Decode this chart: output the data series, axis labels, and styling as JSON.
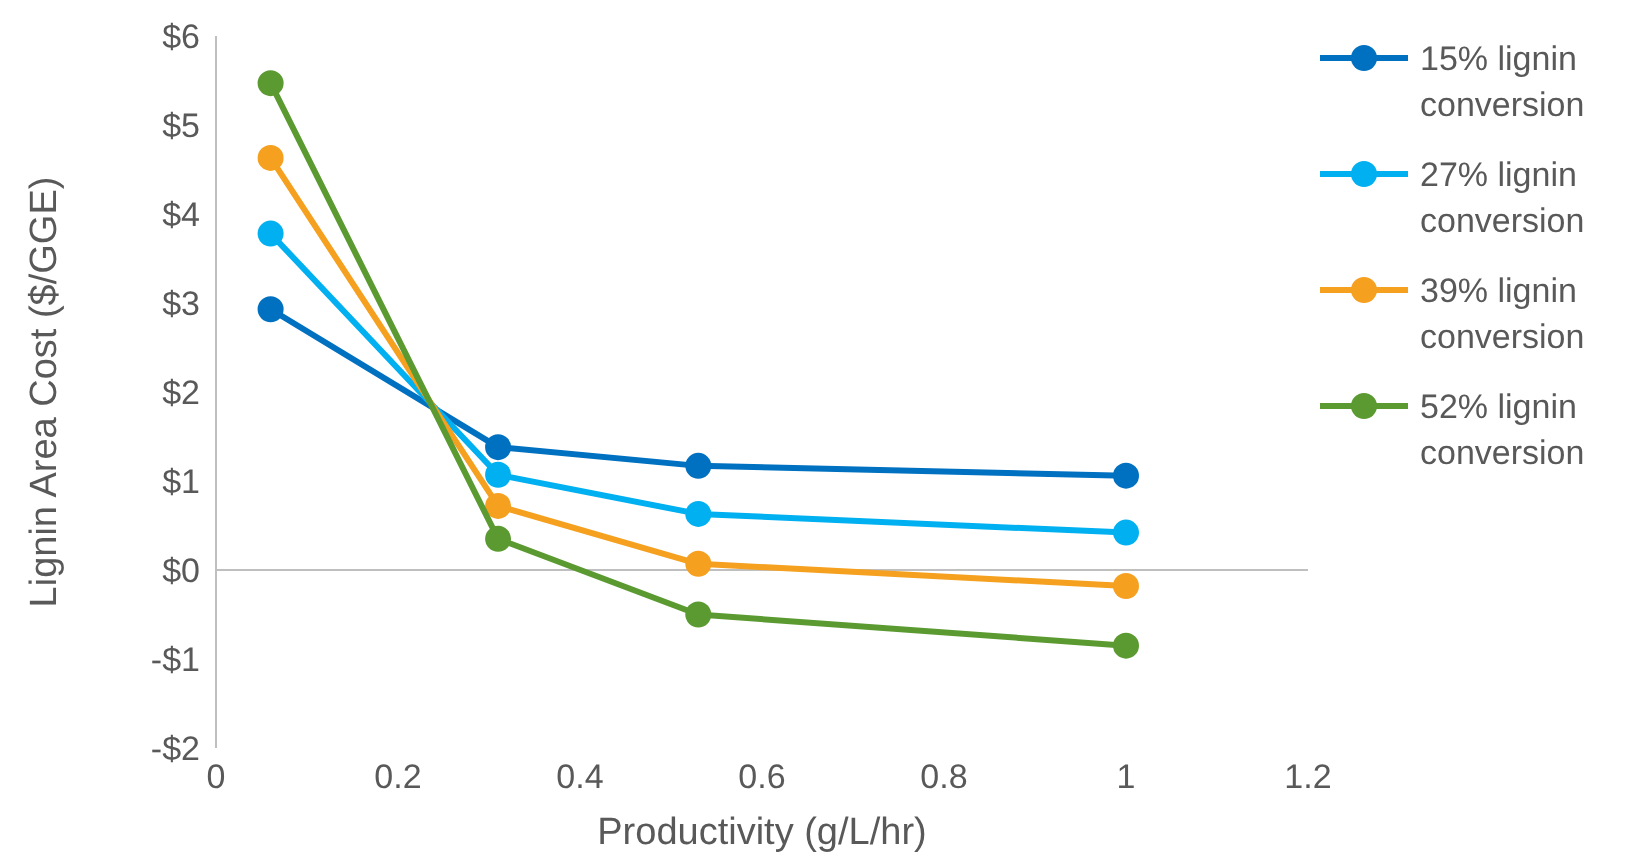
{
  "chart_data": {
    "type": "line",
    "xlabel": "Productivity (g/L/hr)",
    "ylabel": "Lignin Area Cost ($/GGE)",
    "x": [
      0.06,
      0.31,
      0.53,
      1.0
    ],
    "series": [
      {
        "name": "15% lignin conversion",
        "color": "#0070c0",
        "values": [
          2.93,
          1.38,
          1.17,
          1.06
        ]
      },
      {
        "name": "27% lignin conversion",
        "color": "#00b0f0",
        "values": [
          3.78,
          1.07,
          0.63,
          0.42
        ]
      },
      {
        "name": "39% lignin conversion",
        "color": "#f5a01e",
        "values": [
          4.63,
          0.72,
          0.07,
          -0.18
        ]
      },
      {
        "name": "52% lignin conversion",
        "color": "#5b9a30",
        "values": [
          5.47,
          0.35,
          -0.5,
          -0.85
        ]
      }
    ],
    "xlim": [
      0,
      1.2
    ],
    "xticks": [
      0,
      0.2,
      0.4,
      0.6,
      0.8,
      1,
      1.2
    ],
    "ylim": [
      -2,
      6
    ],
    "yticks": [
      {
        "value": -2,
        "label": "-$2"
      },
      {
        "value": -1,
        "label": "-$1"
      },
      {
        "value": 0,
        "label": "$0"
      },
      {
        "value": 1,
        "label": "$1"
      },
      {
        "value": 2,
        "label": "$2"
      },
      {
        "value": 3,
        "label": "$3"
      },
      {
        "value": 4,
        "label": "$4"
      },
      {
        "value": 5,
        "label": "$5"
      },
      {
        "value": 6,
        "label": "$6"
      }
    ],
    "legend": "right",
    "marker": "circle",
    "line_style": "solid"
  }
}
